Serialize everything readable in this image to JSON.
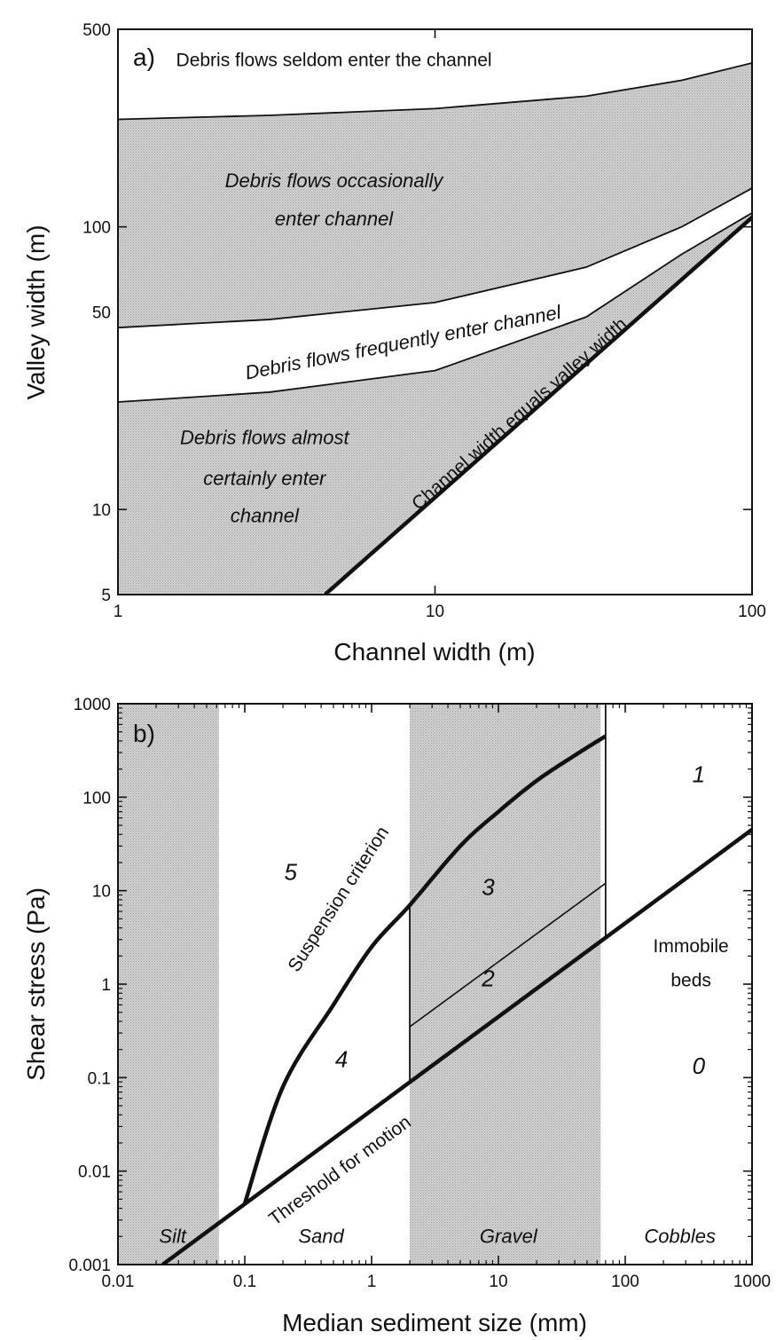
{
  "chart_data": [
    {
      "type": "line",
      "panel_label": "a)",
      "xlabel": "Channel width (m)",
      "ylabel": "Valley width (m)",
      "xscale": "log",
      "yscale": "log",
      "xlim": [
        1,
        100
      ],
      "ylim": [
        5,
        500
      ],
      "x_tick_labels": [
        "1",
        "10",
        "100"
      ],
      "y_tick_labels": [
        "5",
        "10",
        "50",
        "100",
        "500"
      ],
      "series": [
        {
          "x": [
            1,
            3,
            10,
            30,
            60,
            100
          ],
          "y": [
            240,
            248,
            262,
            290,
            330,
            380
          ]
        },
        {
          "x": [
            1,
            3,
            10,
            30,
            60,
            100
          ],
          "y": [
            44,
            47,
            54,
            72,
            100,
            137
          ]
        },
        {
          "x": [
            1,
            3,
            10,
            30,
            60,
            100
          ],
          "y": [
            24,
            26,
            31,
            48,
            80,
            112
          ]
        },
        {
          "x": [
            4.5,
            100
          ],
          "y": [
            5,
            108
          ]
        }
      ],
      "shaded_bands": [
        {
          "between": [
            0,
            1
          ]
        },
        {
          "between": [
            2,
            3
          ]
        },
        {
          "below": 2,
          "above": 3
        }
      ],
      "annotations": [
        {
          "text": "Debris flows seldom enter the channel",
          "x": 4.8,
          "y": 370
        },
        {
          "text": "Debris flows occasionally",
          "x": 4.8,
          "y": 138
        },
        {
          "text": "enter channel",
          "x": 4.8,
          "y": 101
        },
        {
          "text": "Debris flows frequently enter channel",
          "x": 8,
          "y": 37
        },
        {
          "text": "Debris flows almost",
          "x": 2.9,
          "y": 17
        },
        {
          "text": "certainly enter",
          "x": 2.9,
          "y": 12.2
        },
        {
          "text": "channel",
          "x": 2.9,
          "y": 9
        },
        {
          "text": "Channel width equals valley width",
          "x": 19,
          "y": 21
        }
      ]
    },
    {
      "type": "line",
      "panel_label": "b)",
      "xlabel": "Median sediment size (mm)",
      "ylabel": "Shear stress (Pa)",
      "xscale": "log",
      "yscale": "log",
      "xlim": [
        0.01,
        1000
      ],
      "ylim": [
        0.001,
        1000
      ],
      "x_tick_labels": [
        "0.01",
        "0.1",
        "1",
        "10",
        "100",
        "1000"
      ],
      "y_tick_labels": [
        "0.001",
        "0.01",
        "0.1",
        "1",
        "10",
        "100",
        "1000"
      ],
      "shaded_x_bands": [
        [
          0.01,
          0.0625
        ],
        [
          2,
          64
        ]
      ],
      "series": [
        {
          "x": [
            0.0225,
            1000
          ],
          "y": [
            0.001,
            45
          ]
        },
        {
          "x": [
            0.1,
            0.2,
            0.5,
            1,
            2,
            5,
            10,
            20,
            40,
            70
          ],
          "y": [
            0.0045,
            0.08,
            0.6,
            2.5,
            7,
            30,
            70,
            150,
            280,
            450
          ]
        },
        {
          "x": [
            2,
            70
          ],
          "y": [
            0.35,
            12
          ]
        },
        {
          "x": [
            2,
            2
          ],
          "y": [
            0.09,
            7
          ]
        },
        {
          "x": [
            70,
            70
          ],
          "y": [
            3.2,
            1000
          ]
        }
      ],
      "annotations": [
        {
          "text": "Silt",
          "x": 0.027,
          "y": 0.0017
        },
        {
          "text": "Sand",
          "x": 0.4,
          "y": 0.0017
        },
        {
          "text": "Gravel",
          "x": 12,
          "y": 0.0017
        },
        {
          "text": "Cobbles",
          "x": 270,
          "y": 0.0017
        },
        {
          "text": "1",
          "x": 380,
          "y": 145
        },
        {
          "text": "5",
          "x": 0.23,
          "y": 13
        },
        {
          "text": "3",
          "x": 8.3,
          "y": 9
        },
        {
          "text": "2",
          "x": 8.3,
          "y": 0.95
        },
        {
          "text": "4",
          "x": 0.58,
          "y": 0.13
        },
        {
          "text": "0",
          "x": 380,
          "y": 0.11
        },
        {
          "text": "Immobile",
          "x": 330,
          "y": 2.2
        },
        {
          "text": "beds",
          "x": 330,
          "y": 0.95
        },
        {
          "text": "Suspension criterion",
          "x": 0.6,
          "y": 7.5
        },
        {
          "text": "Threshold for motion",
          "x": 0.6,
          "y": 0.009
        }
      ]
    }
  ]
}
